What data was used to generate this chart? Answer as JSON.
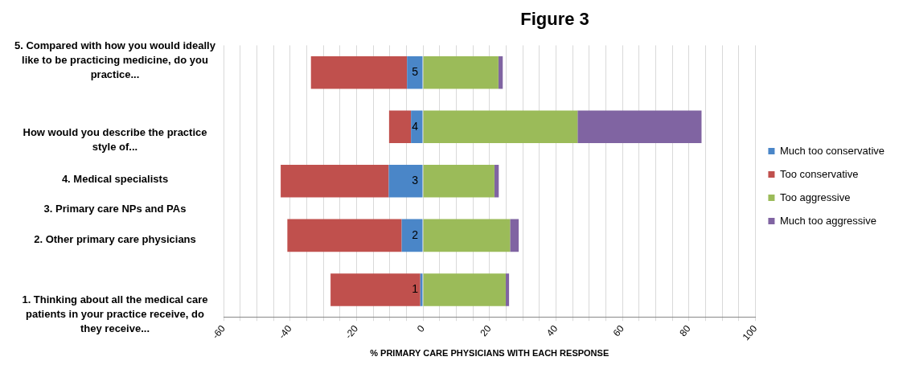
{
  "chart_data": {
    "type": "bar",
    "orientation": "horizontal",
    "stacked": true,
    "title": "Figure 3",
    "xlabel": "% PRIMARY CARE PHYSICIANS WITH EACH RESPONSE",
    "categories": [
      "5",
      "4",
      "3",
      "2",
      "1"
    ],
    "series": [
      {
        "name": "Much too conservative",
        "color": "#4a86c8",
        "values": [
          -4.8,
          -3.6,
          -10.3,
          -6.4,
          -0.8
        ]
      },
      {
        "name": "Too conservative",
        "color": "#c0504d",
        "values": [
          -28.9,
          -6.6,
          -32.5,
          -34.4,
          -27.0
        ]
      },
      {
        "name": "Too aggressive",
        "color": "#9bbb59",
        "values": [
          22.7,
          46.5,
          21.5,
          26.2,
          24.9
        ]
      },
      {
        "name": "Much too aggressive",
        "color": "#8064a2",
        "values": [
          1.3,
          37.3,
          1.3,
          2.6,
          1.0
        ]
      }
    ],
    "xlim": [
      -60,
      100
    ],
    "xticks": [
      -60,
      -40,
      -20,
      0,
      20,
      40,
      60,
      80,
      100
    ],
    "grid": "x",
    "legend": "right",
    "annotations": [
      "5. Compared with how you would ideally like to be practicing medicine, do you practice...",
      "How would you describe the practice style of...",
      "4. Medical specialists",
      "3. Primary care NPs and PAs",
      "2. Other primary care physicians",
      "1. Thinking about all the medical care patients in your practice receive, do they receive..."
    ]
  }
}
